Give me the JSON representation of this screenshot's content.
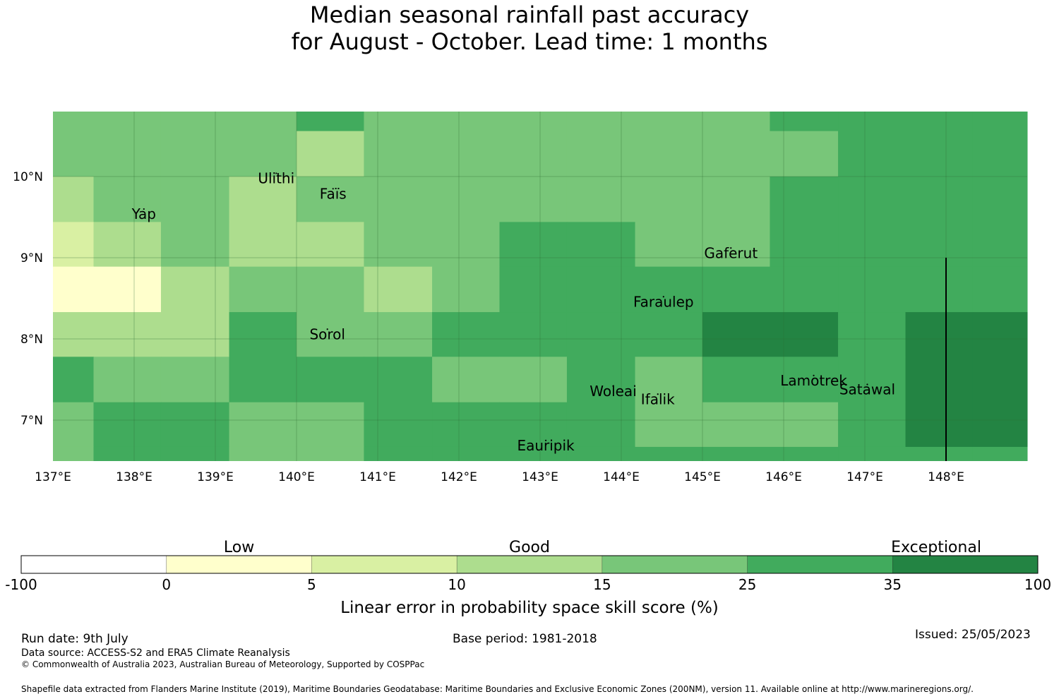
{
  "title": {
    "line1": "Median seasonal rainfall past accuracy",
    "line2": "for August - October. Lead time: 1 months"
  },
  "map": {
    "lon_ticks": [
      "137°E",
      "138°E",
      "139°E",
      "140°E",
      "141°E",
      "142°E",
      "143°E",
      "144°E",
      "145°E",
      "146°E",
      "147°E",
      "148°E"
    ],
    "lat_ticks": [
      "10°N",
      "9°N",
      "8°N",
      "7°N"
    ],
    "places": [
      {
        "name": "Ulithi",
        "lon": 139.75,
        "lat": 9.97
      },
      {
        "name": "Yap",
        "lon": 138.12,
        "lat": 9.53
      },
      {
        "name": "Faïs",
        "lon": 140.45,
        "lat": 9.78
      },
      {
        "name": "Gaferut",
        "lon": 145.35,
        "lat": 9.05
      },
      {
        "name": "Faraulep",
        "lon": 144.52,
        "lat": 8.45
      },
      {
        "name": "Sorol",
        "lon": 140.38,
        "lat": 8.05
      },
      {
        "name": "Woleai",
        "lon": 143.9,
        "lat": 7.35
      },
      {
        "name": "Ifalik",
        "lon": 144.45,
        "lat": 7.25
      },
      {
        "name": "Lamotrek",
        "lon": 146.37,
        "lat": 7.48
      },
      {
        "name": "Satawal",
        "lon": 147.03,
        "lat": 7.37
      },
      {
        "name": "Eauripik",
        "lon": 143.07,
        "lat": 6.68
      }
    ],
    "cell_categories": {
      "lon_bounds": [
        137.0,
        137.5,
        138.33,
        139.17,
        140.0,
        140.83,
        141.67,
        142.5,
        143.33,
        144.17,
        145.0,
        145.83,
        146.67,
        147.5,
        148.33,
        149.0
      ],
      "lat_bounds": [
        10.8,
        10.56,
        10.0,
        9.44,
        8.89,
        8.33,
        7.78,
        7.22,
        6.67,
        6.5
      ],
      "rows": [
        [
          4,
          4,
          4,
          4,
          5,
          4,
          4,
          4,
          4,
          4,
          4,
          5,
          5,
          5,
          5
        ],
        [
          4,
          4,
          4,
          4,
          3,
          4,
          4,
          4,
          4,
          4,
          4,
          4,
          5,
          5,
          5
        ],
        [
          3,
          4,
          4,
          3,
          4,
          4,
          4,
          4,
          4,
          4,
          4,
          5,
          5,
          5,
          5
        ],
        [
          2,
          3,
          4,
          3,
          3,
          4,
          4,
          5,
          5,
          4,
          4,
          5,
          5,
          5,
          5
        ],
        [
          1,
          1,
          3,
          4,
          4,
          3,
          4,
          5,
          5,
          5,
          5,
          5,
          5,
          5,
          5
        ],
        [
          3,
          3,
          3,
          5,
          4,
          4,
          5,
          5,
          5,
          5,
          6,
          6,
          5,
          6,
          6
        ],
        [
          5,
          4,
          4,
          5,
          5,
          5,
          4,
          4,
          5,
          4,
          5,
          5,
          5,
          6,
          6
        ],
        [
          4,
          5,
          5,
          4,
          4,
          5,
          5,
          5,
          5,
          4,
          4,
          4,
          5,
          6,
          6
        ],
        [
          4,
          5,
          5,
          4,
          4,
          5,
          5,
          5,
          5,
          5,
          5,
          5,
          5,
          5,
          5
        ]
      ]
    },
    "vertical_line_lon": 148.0
  },
  "colorbar": {
    "bins": [
      {
        "from": -100,
        "to": 0,
        "color": "#ffffff"
      },
      {
        "from": 0,
        "to": 5,
        "color": "#ffffcc"
      },
      {
        "from": 5,
        "to": 10,
        "color": "#d9f0a3"
      },
      {
        "from": 10,
        "to": 15,
        "color": "#addd8e"
      },
      {
        "from": 15,
        "to": 25,
        "color": "#78c679"
      },
      {
        "from": 25,
        "to": 35,
        "color": "#41ab5d"
      },
      {
        "from": 35,
        "to": 100,
        "color": "#238443"
      }
    ],
    "tick_labels": [
      "-100",
      "0",
      "5",
      "10",
      "15",
      "25",
      "35",
      "100"
    ],
    "category_labels": {
      "low": "Low",
      "good": "Good",
      "exceptional": "Exceptional"
    },
    "axis_label": "Linear error in probability space skill score (%)"
  },
  "footer": {
    "run_date": "Run date: 9th July",
    "base_period": "Base period: 1981-2018",
    "issued": "Issued: 25/05/2023",
    "data_source": "Data source: ACCESS-S2 and ERA5 Climate Reanalysis",
    "copyright": "© Commonwealth of Australia 2023, Australian Bureau of Meteorology, Supported by COSPPac",
    "shapefile": "Shapefile data extracted from Flanders Marine Institute (2019), Maritime Boundaries Geodatabase: Maritime Boundaries and Exclusive Economic Zones (200NM), version 11. Available online at http://www.marineregions.org/."
  }
}
